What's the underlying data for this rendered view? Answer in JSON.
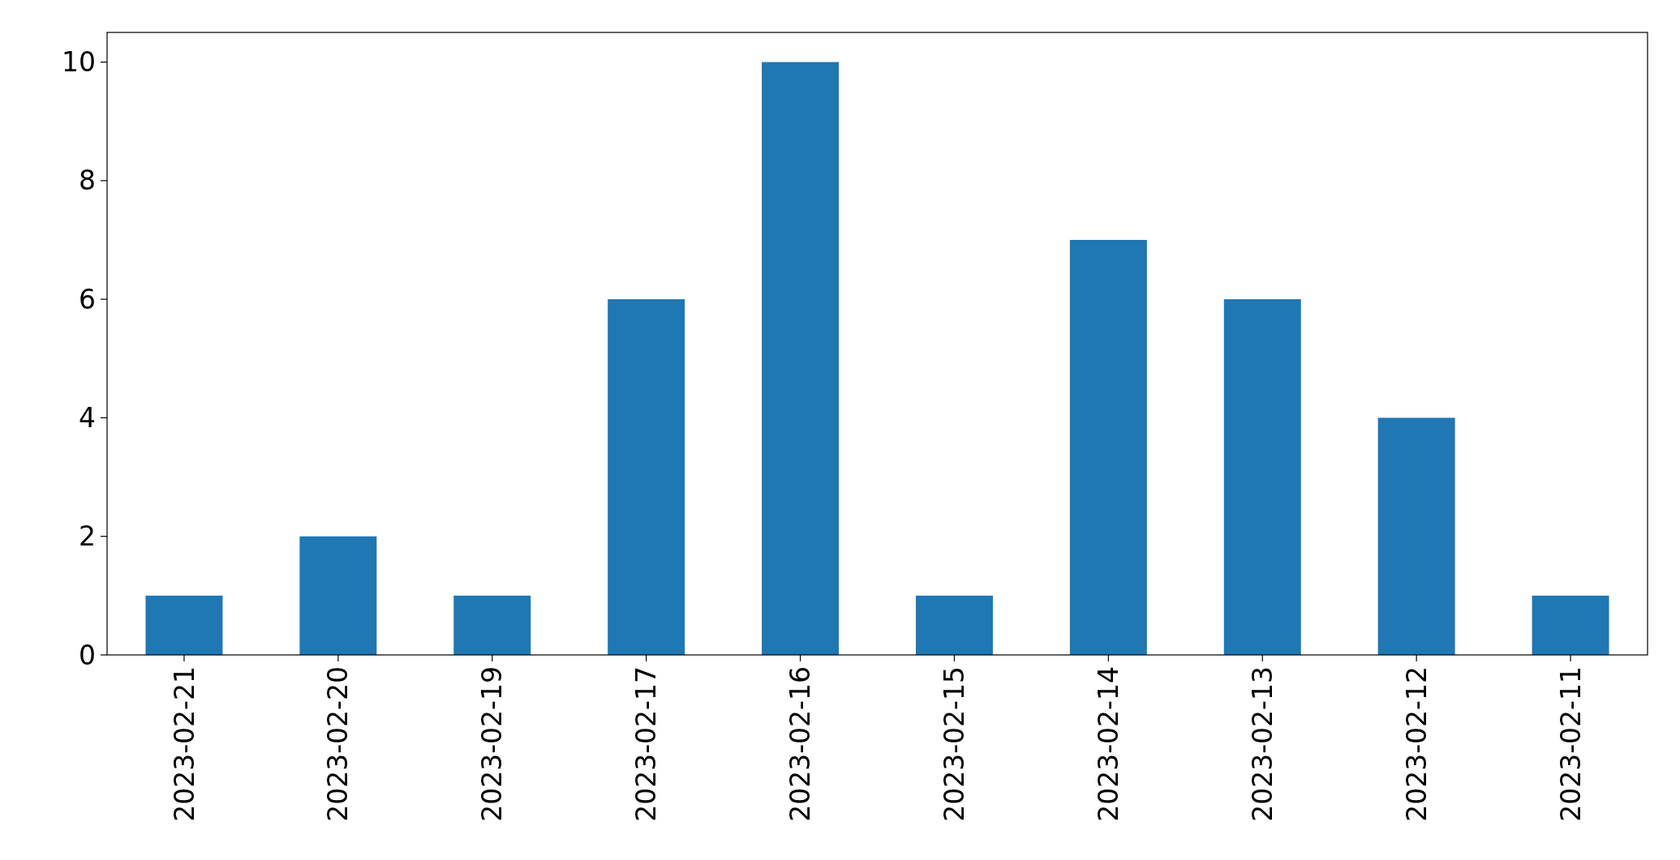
{
  "chart_data": {
    "type": "bar",
    "categories": [
      "2023-02-21",
      "2023-02-20",
      "2023-02-19",
      "2023-02-17",
      "2023-02-16",
      "2023-02-15",
      "2023-02-14",
      "2023-02-13",
      "2023-02-12",
      "2023-02-11"
    ],
    "values": [
      1,
      2,
      1,
      6,
      10,
      1,
      7,
      6,
      4,
      1
    ],
    "color": "#1f77b4",
    "ylim": [
      0,
      10.5
    ],
    "yticks": [
      0,
      2,
      4,
      6,
      8,
      10
    ]
  }
}
